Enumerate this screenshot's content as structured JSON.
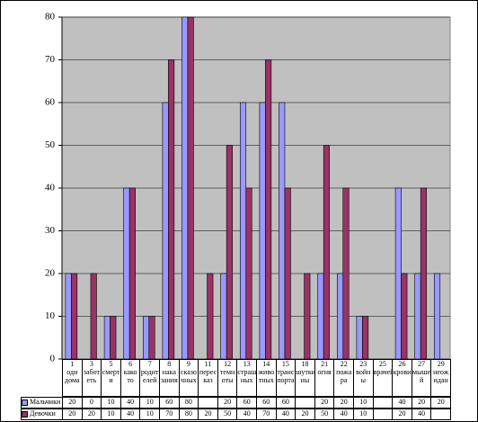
{
  "chart_data": {
    "type": "bar",
    "categories": [
      "1\nоди\nдома",
      "3\nзабот\nеть",
      "5\nсмерт\nи",
      "6\nкако\nто",
      "7\nродит\nелей",
      "8\nнака\nзания",
      "9\nсказо\nчных",
      "11\nперес\nказ",
      "12\nтемн\nоты",
      "13\nстраш\nных",
      "14\nживо\nтных",
      "15\nтранс\nпорта",
      "18\nшутки\nны",
      "21\nогня",
      "22\nпожа\nра",
      "23\nвойн\nы",
      "25\nврачей",
      "26\nкрови",
      "27\nмышe\nй",
      "29\nнеож\nидан"
    ],
    "series": [
      {
        "name": "Мальчики",
        "color": "#9999ff",
        "values": [
          20,
          0,
          10,
          40,
          10,
          60,
          80,
          null,
          20,
          60,
          60,
          60,
          null,
          20,
          20,
          10,
          null,
          40,
          20,
          20
        ]
      },
      {
        "name": "Девочки",
        "color": "#993366",
        "values": [
          20,
          20,
          10,
          40,
          10,
          70,
          80,
          20,
          50,
          40,
          70,
          40,
          20,
          50,
          40,
          10,
          null,
          20,
          40,
          null
        ]
      }
    ],
    "ylim": [
      0,
      80
    ],
    "yticks": [
      0,
      10,
      20,
      30,
      40,
      50,
      60,
      70,
      80
    ],
    "grid": true
  }
}
